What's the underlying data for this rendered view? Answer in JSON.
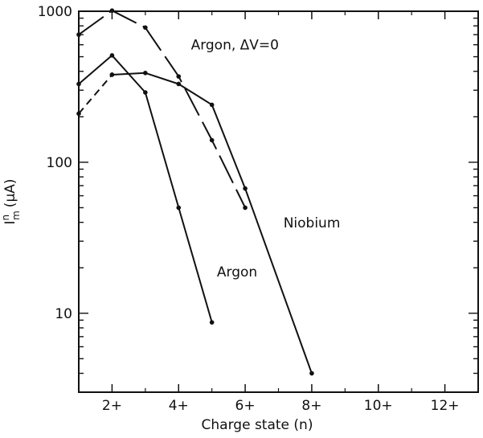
{
  "chart_data": {
    "type": "line",
    "xlabel": "Charge state (n)",
    "ylabel": "I",
    "ylabel_sup": "n",
    "ylabel_sub": "m",
    "ylabel_unit": "(μA)",
    "yscale": "log",
    "xlim": [
      1,
      13
    ],
    "ylim": [
      3,
      1000
    ],
    "x_ticks": [
      2,
      4,
      6,
      8,
      10,
      12
    ],
    "x_tick_labels": [
      "2+",
      "4+",
      "6+",
      "8+",
      "10+",
      "12+"
    ],
    "y_ticks": [
      10,
      100,
      1000
    ],
    "y_tick_labels": [
      "10",
      "100",
      "1000"
    ],
    "grid": false,
    "series": [
      {
        "name": "Argon, ΔV=0",
        "line_style": "long-dash",
        "x": [
          1,
          2,
          3,
          4,
          5,
          6
        ],
        "y": [
          700,
          1010,
          780,
          370,
          140,
          50
        ]
      },
      {
        "name": "Argon",
        "line_style": "solid",
        "x": [
          1,
          2,
          3,
          4,
          5
        ],
        "y": [
          330,
          510,
          290,
          50,
          8.7
        ]
      },
      {
        "name": "Niobium",
        "line_style": "solid",
        "x": [
          2,
          3,
          4,
          5,
          6,
          8
        ],
        "y": [
          380,
          390,
          330,
          240,
          67,
          4
        ]
      },
      {
        "name": "",
        "line_style": "short-dash",
        "x": [
          1,
          2
        ],
        "y": [
          210,
          380
        ]
      }
    ]
  }
}
